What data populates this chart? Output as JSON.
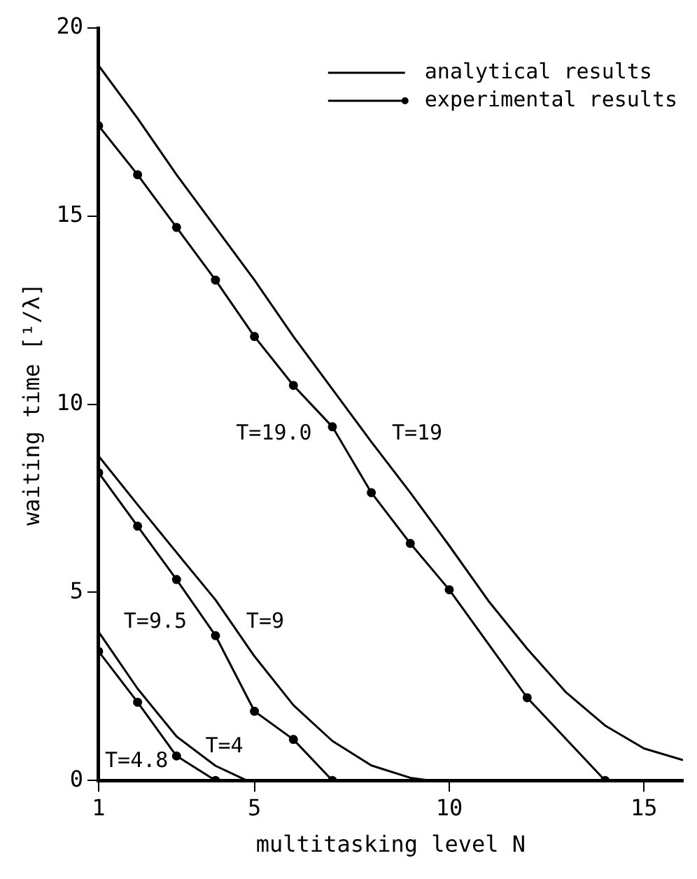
{
  "chart_data": {
    "type": "line",
    "xlabel": "multitasking level N",
    "ylabel": "waiting time [¹/λ]",
    "xlim": [
      1,
      16
    ],
    "xticks": [
      1,
      5,
      10,
      15
    ],
    "ylim": [
      0,
      20
    ],
    "yticks": [
      0,
      5,
      10,
      15,
      20
    ],
    "grid": false,
    "legend": "top right",
    "line_style": "solid",
    "series": [
      {
        "name": "analytical results",
        "color": "#000000",
        "marker": "none",
        "x": [
          1,
          2,
          3,
          4,
          5,
          6,
          7,
          8,
          9,
          10,
          11,
          12,
          13,
          14,
          15,
          16
        ],
        "values": [
          19.0,
          17.6,
          16.1,
          14.7,
          13.3,
          11.8,
          10.4,
          9.0,
          7.65,
          6.24,
          4.78,
          3.5,
          2.34,
          1.46,
          0.85,
          0.54
        ]
      },
      {
        "name": "experimental results",
        "color": "#000000",
        "marker": "circle",
        "x": [
          1,
          2,
          3,
          4,
          5,
          6,
          7,
          8,
          9,
          10,
          12,
          14
        ],
        "values": [
          17.4,
          16.1,
          14.7,
          13.3,
          11.8,
          10.5,
          9.4,
          7.65,
          6.3,
          5.07,
          2.2,
          0
        ]
      },
      {
        "color": "#000000",
        "marker": "none",
        "x": [
          1,
          2,
          3,
          4,
          5,
          6,
          7,
          8,
          9,
          9.5
        ],
        "values": [
          8.62,
          7.33,
          6.06,
          4.8,
          3.3,
          2.0,
          1.05,
          0.4,
          0.07,
          0
        ]
      },
      {
        "color": "#000000",
        "marker": "circle",
        "x": [
          1,
          2,
          3,
          4,
          5,
          6,
          7
        ],
        "values": [
          8.18,
          6.76,
          5.34,
          3.85,
          1.84,
          1.09,
          0
        ]
      },
      {
        "color": "#000000",
        "marker": "none",
        "x": [
          1,
          2,
          3,
          4,
          4.8
        ],
        "values": [
          3.95,
          2.44,
          1.17,
          0.39,
          0
        ]
      },
      {
        "color": "#000000",
        "marker": "circle",
        "x": [
          1,
          2,
          3,
          4
        ],
        "values": [
          3.43,
          2.08,
          0.65,
          0
        ]
      }
    ],
    "annotations": [
      "T=19.0",
      "T=19",
      "T=9.5",
      "T=9",
      "T=4.8",
      "T=4"
    ]
  }
}
